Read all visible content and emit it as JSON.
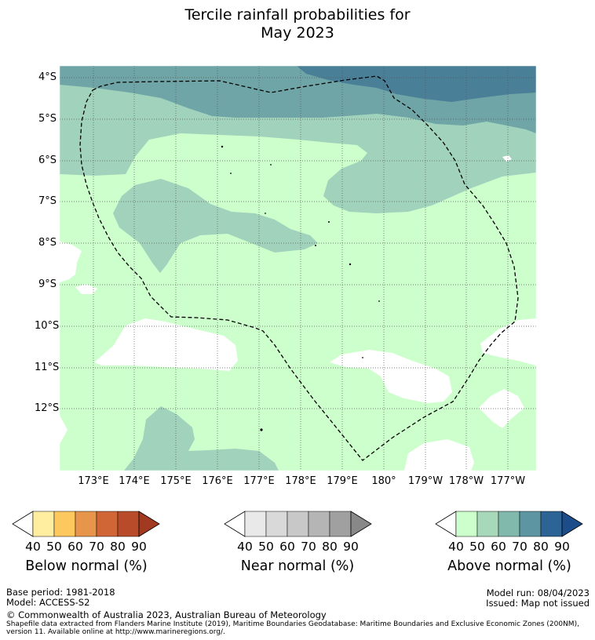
{
  "title": {
    "line1": "Tercile rainfall probabilities for",
    "line2": "May 2023"
  },
  "map": {
    "lat_ticks": [
      "4°S",
      "5°S",
      "6°S",
      "7°S",
      "8°S",
      "9°S",
      "10°S",
      "11°S",
      "12°S"
    ],
    "lon_ticks": [
      "173°E",
      "174°E",
      "175°E",
      "176°E",
      "177°E",
      "178°E",
      "179°E",
      "180°",
      "179°W",
      "178°W",
      "177°W"
    ],
    "boundary": "dashed EEZ outline",
    "gridlines": "dotted"
  },
  "legends": [
    {
      "title": "Below normal (%)",
      "ticks": [
        "40",
        "50",
        "60",
        "70",
        "80",
        "90"
      ],
      "colors": [
        "#ffffff",
        "#ffeea0",
        "#fdc95f",
        "#e7954b",
        "#d06636",
        "#b84c2a",
        "#a23a22"
      ]
    },
    {
      "title": "Near normal (%)",
      "ticks": [
        "40",
        "50",
        "60",
        "70",
        "80",
        "90"
      ],
      "colors": [
        "#ffffff",
        "#e9e9e9",
        "#d9d9d9",
        "#c8c8c8",
        "#b5b5b5",
        "#a0a0a0",
        "#888888"
      ]
    },
    {
      "title": "Above normal (%)",
      "ticks": [
        "40",
        "50",
        "60",
        "70",
        "80",
        "90"
      ],
      "colors": [
        "#ffffff",
        "#ccffcc",
        "#a7d8b9",
        "#82b9ad",
        "#5d95a3",
        "#2d6496",
        "#1c4c8a"
      ]
    }
  ],
  "colors": {
    "above_40": "#ccffcc",
    "above_50": "#a0d2bc",
    "above_60": "#6fa5a6",
    "above_70": "#4a7f98",
    "white": "#ffffff"
  },
  "footer": {
    "base_period": "Base period: 1981-2018",
    "model": "Model: ACCESS-S2",
    "model_run": "Model run: 08/04/2023",
    "issued": "Issued: Map not issued",
    "copyright": "© Commonwealth of Australia 2023, Australian Bureau of Meteorology",
    "shapefile_line1": "Shapefile data extracted from Flanders Marine Institute (2019), Maritime Boundaries Geodatabase: Maritime Boundaries and Exclusive Economic Zones (200NM),",
    "shapefile_line2": "version 11. Available online at http://www.marineregions.org/."
  }
}
